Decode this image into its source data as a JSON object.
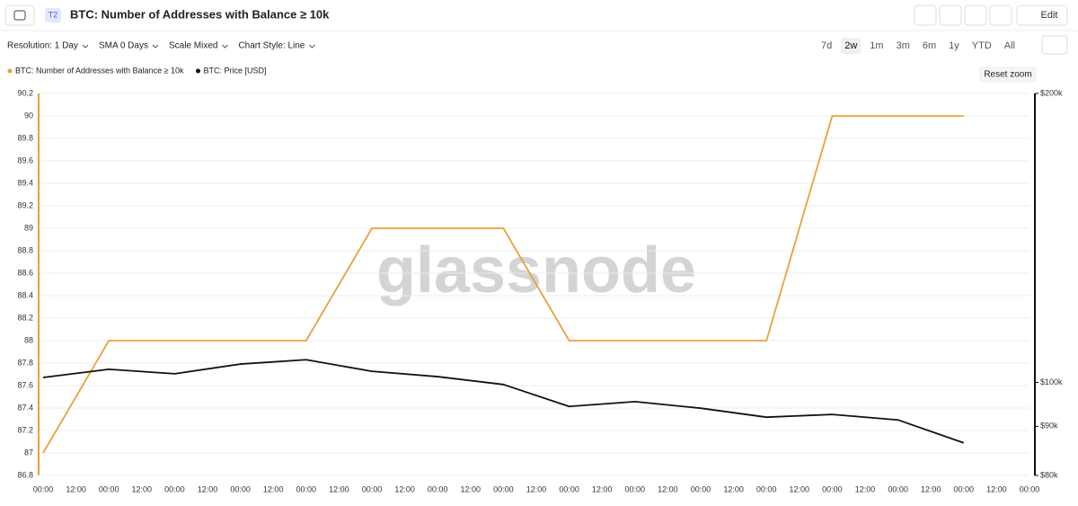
{
  "header": {
    "badge": "T2",
    "title": "BTC: Number of Addresses with Balance ≥ 10k",
    "edit": "Edit"
  },
  "toolbar": {
    "options": [
      "Resolution: 1 Day",
      "SMA 0 Days",
      "Scale Mixed",
      "Chart Style: Line"
    ],
    "ranges": [
      "7d",
      "2w",
      "1m",
      "3m",
      "6m",
      "1y",
      "YTD",
      "All"
    ],
    "active_range": 1
  },
  "reset_zoom": "Reset zoom",
  "watermark": "glassnode",
  "chart_data": {
    "type": "line",
    "xtick_labels": [
      "00:00",
      "12:00",
      "00:00",
      "12:00",
      "00:00",
      "12:00",
      "00:00",
      "12:00",
      "00:00",
      "12:00",
      "00:00",
      "12:00",
      "00:00",
      "12:00",
      "00:00",
      "12:00",
      "00:00",
      "12:00",
      "00:00",
      "12:00",
      "00:00",
      "12:00",
      "00:00",
      "12:00",
      "00:00",
      "12:00",
      "00:00",
      "12:00",
      "00:00",
      "12:00",
      "00:00"
    ],
    "series": [
      {
        "name": "BTC: Number of Addresses with Balance ≥ 10k",
        "color": "#eba13a",
        "axis": "y",
        "values": [
          87,
          88,
          88,
          88,
          88,
          89,
          89,
          89,
          88,
          88,
          88,
          88,
          90,
          90,
          90
        ]
      },
      {
        "name": "BTC: Price [USD]",
        "color": "#111111",
        "axis": "y2",
        "values": [
          101200,
          103200,
          102100,
          104500,
          105600,
          102700,
          101400,
          99500,
          94400,
          95500,
          94000,
          92000,
          92600,
          91400,
          86500
        ]
      }
    ],
    "ylim": [
      86.8,
      90.2
    ],
    "yticks": [
      86.8,
      87,
      87.2,
      87.4,
      87.6,
      87.8,
      88,
      88.2,
      88.4,
      88.6,
      88.8,
      89,
      89.2,
      89.4,
      89.6,
      89.8,
      90,
      90.2
    ],
    "y2lim": [
      80000,
      200000
    ],
    "y2ticks": [
      {
        "value": 80000,
        "label": "$80k"
      },
      {
        "value": 90000,
        "label": "$90k"
      },
      {
        "value": 100000,
        "label": "$100k"
      },
      {
        "value": 200000,
        "label": "$200k"
      }
    ],
    "y2log": true,
    "grid": true
  }
}
